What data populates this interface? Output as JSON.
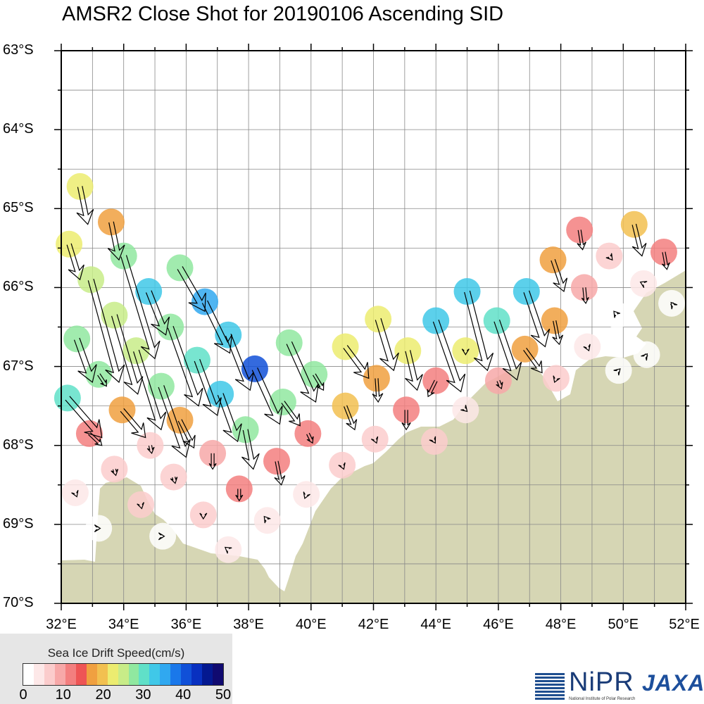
{
  "title": "AMSR2 Close Shot for 20190106 Ascending SID",
  "map": {
    "lat_labels": [
      "63°S",
      "64°S",
      "65°S",
      "66°S",
      "67°S",
      "68°S",
      "69°S",
      "70°S"
    ],
    "lon_labels": [
      "32°E",
      "34°E",
      "36°E",
      "38°E",
      "40°E",
      "42°E",
      "44°E",
      "46°E",
      "48°E",
      "50°E",
      "52°E"
    ],
    "lon_range": [
      32,
      52
    ],
    "lat_range": [
      -63,
      -70
    ],
    "land_color": "#d6d6b4",
    "grid_color": "#888888"
  },
  "legend": {
    "title": "Sea Ice Drift Speed(cm/s)",
    "ticks": [
      "0",
      "10",
      "20",
      "30",
      "40",
      "50"
    ],
    "colors": [
      "#ffffff",
      "#fde8e8",
      "#fbcccc",
      "#f7a8a8",
      "#f37f7f",
      "#ee5555",
      "#f0a040",
      "#f2c050",
      "#ecec70",
      "#c8ec88",
      "#90e8a0",
      "#60e0c8",
      "#40c8e8",
      "#30a8f0",
      "#1a78ea",
      "#1050d8",
      "#0830c0",
      "#041890",
      "#100a70"
    ],
    "speed_range": [
      0,
      50
    ]
  },
  "logos": {
    "nipr_name": "NiPR",
    "nipr_full": "National Institute of Polar Research",
    "jaxa_name": "JAXA"
  },
  "drift_vectors": [
    {
      "lon": 32.6,
      "lat": -64.72,
      "speed": 22,
      "dlon": 0.25,
      "dlat": -0.48
    },
    {
      "lon": 33.6,
      "lat": -65.17,
      "speed": 17,
      "dlon": 0.25,
      "dlat": -0.48
    },
    {
      "lon": 32.25,
      "lat": -65.45,
      "speed": 22,
      "dlon": 0.35,
      "dlat": -0.45
    },
    {
      "lon": 34.0,
      "lat": -65.6,
      "speed": 27,
      "dlon": 1.0,
      "dlat": -1.3
    },
    {
      "lon": 32.95,
      "lat": -65.9,
      "speed": 26,
      "dlon": 0.9,
      "dlat": -1.3
    },
    {
      "lon": 34.8,
      "lat": -66.05,
      "speed": 32,
      "dlon": 0.55,
      "dlat": -0.55
    },
    {
      "lon": 35.8,
      "lat": -65.75,
      "speed": 28,
      "dlon": 0.8,
      "dlat": -0.55
    },
    {
      "lon": 36.6,
      "lat": -66.18,
      "speed": 36,
      "dlon": 0.8,
      "dlat": -0.65
    },
    {
      "lon": 33.7,
      "lat": -66.35,
      "speed": 25,
      "dlon": 0.75,
      "dlat": -1.0
    },
    {
      "lon": 35.5,
      "lat": -66.5,
      "speed": 28,
      "dlon": 0.9,
      "dlat": -1.0
    },
    {
      "lon": 37.35,
      "lat": -66.6,
      "speed": 33,
      "dlon": 0.7,
      "dlat": -0.7
    },
    {
      "lon": 32.5,
      "lat": -66.65,
      "speed": 27,
      "dlon": 0.5,
      "dlat": -0.55
    },
    {
      "lon": 34.4,
      "lat": -66.8,
      "speed": 26,
      "dlon": 0.8,
      "dlat": -1.0
    },
    {
      "lon": 36.35,
      "lat": -66.92,
      "speed": 31,
      "dlon": 0.65,
      "dlat": -0.7
    },
    {
      "lon": 38.2,
      "lat": -67.03,
      "speed": 42,
      "dlon": 0.8,
      "dlat": -0.7
    },
    {
      "lon": 39.3,
      "lat": -66.7,
      "speed": 28,
      "dlon": 0.85,
      "dlat": -0.75
    },
    {
      "lon": 33.2,
      "lat": -67.1,
      "speed": 28,
      "dlon": 0.25,
      "dlat": -0.15
    },
    {
      "lon": 35.2,
      "lat": -67.25,
      "speed": 28,
      "dlon": 0.8,
      "dlat": -0.9
    },
    {
      "lon": 37.1,
      "lat": -67.35,
      "speed": 32,
      "dlon": 0.55,
      "dlat": -0.6
    },
    {
      "lon": 32.2,
      "lat": -67.4,
      "speed": 30,
      "dlon": 1.1,
      "dlat": -0.5
    },
    {
      "lon": 40.1,
      "lat": -67.1,
      "speed": 27,
      "dlon": 0.3,
      "dlat": -0.2
    },
    {
      "lon": 39.1,
      "lat": -67.45,
      "speed": 28,
      "dlon": 0.55,
      "dlat": -0.3
    },
    {
      "lon": 41.1,
      "lat": -66.75,
      "speed": 22,
      "dlon": 0.75,
      "dlat": -0.4
    },
    {
      "lon": 42.15,
      "lat": -66.4,
      "speed": 22,
      "dlon": 0.5,
      "dlat": -0.65
    },
    {
      "lon": 43.1,
      "lat": -66.8,
      "speed": 22,
      "dlon": 0.3,
      "dlat": -0.5
    },
    {
      "lon": 44.0,
      "lat": -66.42,
      "speed": 32,
      "dlon": 0.8,
      "dlat": -0.9
    },
    {
      "lon": 45.0,
      "lat": -66.05,
      "speed": 32,
      "dlon": 0.65,
      "dlat": -1.0
    },
    {
      "lon": 45.95,
      "lat": -66.42,
      "speed": 29,
      "dlon": 0.65,
      "dlat": -0.75
    },
    {
      "lon": 46.9,
      "lat": -66.05,
      "speed": 34,
      "dlon": 0.6,
      "dlat": -0.7
    },
    {
      "lon": 44.95,
      "lat": -66.8,
      "speed": 23,
      "dlon": 0.0,
      "dlat": -0.05
    },
    {
      "lon": 46.85,
      "lat": -66.78,
      "speed": 16,
      "dlon": 0.55,
      "dlat": -0.3
    },
    {
      "lon": 47.8,
      "lat": -66.42,
      "speed": 16,
      "dlon": 0.15,
      "dlat": -0.3
    },
    {
      "lon": 47.75,
      "lat": -65.65,
      "speed": 16,
      "dlon": 0.35,
      "dlat": -0.4
    },
    {
      "lon": 48.6,
      "lat": -65.27,
      "speed": 11,
      "dlon": 0.1,
      "dlat": -0.25
    },
    {
      "lon": 49.55,
      "lat": -65.6,
      "speed": 6,
      "dlon": 0.1,
      "dlat": -0.05
    },
    {
      "lon": 50.35,
      "lat": -65.2,
      "speed": 21,
      "dlon": 0.25,
      "dlat": -0.4
    },
    {
      "lon": 51.3,
      "lat": -65.55,
      "speed": 11,
      "dlon": 0.1,
      "dlat": -0.22
    },
    {
      "lon": 48.75,
      "lat": -66.0,
      "speed": 8,
      "dlon": 0.05,
      "dlat": -0.2
    },
    {
      "lon": 50.65,
      "lat": -65.95,
      "speed": 3,
      "dlon": -0.1,
      "dlat": 0.02
    },
    {
      "lon": 49.8,
      "lat": -66.35,
      "speed": 2,
      "dlon": -0.1,
      "dlat": 0.05
    },
    {
      "lon": 48.85,
      "lat": -66.75,
      "speed": 3,
      "dlon": 0.05,
      "dlat": -0.05
    },
    {
      "lon": 49.85,
      "lat": -67.05,
      "speed": 2,
      "dlon": 0.05,
      "dlat": 0.02
    },
    {
      "lon": 50.75,
      "lat": -66.85,
      "speed": 1,
      "dlon": 0.02,
      "dlat": 0.01
    },
    {
      "lon": 51.55,
      "lat": -66.2,
      "speed": 1,
      "dlon": -0.02,
      "dlat": 0.01
    },
    {
      "lon": 42.1,
      "lat": -67.15,
      "speed": 17,
      "dlon": 0.05,
      "dlat": -0.3
    },
    {
      "lon": 41.1,
      "lat": -67.5,
      "speed": 20,
      "dlon": 0.3,
      "dlat": -0.3
    },
    {
      "lon": 43.05,
      "lat": -67.55,
      "speed": 12,
      "dlon": 0.0,
      "dlat": -0.25
    },
    {
      "lon": 44.0,
      "lat": -67.18,
      "speed": 12,
      "dlon": -0.25,
      "dlat": -0.2
    },
    {
      "lon": 44.95,
      "lat": -67.55,
      "speed": 5,
      "dlon": 0.05,
      "dlat": -0.02
    },
    {
      "lon": 46.0,
      "lat": -67.18,
      "speed": 9,
      "dlon": 0.1,
      "dlat": -0.1
    },
    {
      "lon": 47.85,
      "lat": -67.15,
      "speed": 6,
      "dlon": -0.05,
      "dlat": -0.05
    },
    {
      "lon": 39.9,
      "lat": -67.85,
      "speed": 12,
      "dlon": 0.15,
      "dlat": -0.12
    },
    {
      "lon": 38.9,
      "lat": -68.2,
      "speed": 13,
      "dlon": 0.15,
      "dlat": -0.3
    },
    {
      "lon": 37.9,
      "lat": -67.8,
      "speed": 27,
      "dlon": 0.25,
      "dlat": -0.5
    },
    {
      "lon": 33.95,
      "lat": -67.55,
      "speed": 18,
      "dlon": 0.75,
      "dlat": -0.35
    },
    {
      "lon": 35.8,
      "lat": -67.68,
      "speed": 17,
      "dlon": 0.45,
      "dlat": -0.35
    },
    {
      "lon": 32.9,
      "lat": -67.85,
      "speed": 11,
      "dlon": 0.4,
      "dlat": -0.15
    },
    {
      "lon": 34.85,
      "lat": -68.0,
      "speed": 7,
      "dlon": 0.05,
      "dlat": -0.1
    },
    {
      "lon": 36.85,
      "lat": -68.1,
      "speed": 10,
      "dlon": 0.0,
      "dlat": -0.2
    },
    {
      "lon": 33.7,
      "lat": -68.3,
      "speed": 7,
      "dlon": 0.05,
      "dlat": -0.08
    },
    {
      "lon": 35.6,
      "lat": -68.4,
      "speed": 7,
      "dlon": 0.05,
      "dlat": -0.08
    },
    {
      "lon": 32.45,
      "lat": -68.6,
      "speed": 5,
      "dlon": 0.05,
      "dlat": -0.05
    },
    {
      "lon": 34.55,
      "lat": -68.75,
      "speed": 6,
      "dlon": 0.03,
      "dlat": -0.05
    },
    {
      "lon": 37.7,
      "lat": -68.55,
      "speed": 11,
      "dlon": 0.0,
      "dlat": -0.15
    },
    {
      "lon": 36.55,
      "lat": -68.88,
      "speed": 7,
      "dlon": 0.0,
      "dlat": -0.05
    },
    {
      "lon": 38.6,
      "lat": -68.95,
      "speed": 3,
      "dlon": -0.1,
      "dlat": 0.05
    },
    {
      "lon": 39.85,
      "lat": -68.62,
      "speed": 4,
      "dlon": -0.05,
      "dlat": -0.05
    },
    {
      "lon": 41.0,
      "lat": -68.25,
      "speed": 7,
      "dlon": 0.05,
      "dlat": -0.05
    },
    {
      "lon": 42.05,
      "lat": -67.92,
      "speed": 7,
      "dlon": 0.05,
      "dlat": -0.05
    },
    {
      "lon": 43.95,
      "lat": -67.95,
      "speed": 6,
      "dlon": 0.03,
      "dlat": -0.02
    },
    {
      "lon": 37.35,
      "lat": -69.32,
      "speed": 5,
      "dlon": -0.1,
      "dlat": 0.03
    },
    {
      "lon": 35.25,
      "lat": -69.15,
      "speed": 2,
      "dlon": 0.05,
      "dlat": 0.0
    },
    {
      "lon": 33.2,
      "lat": -69.05,
      "speed": 2,
      "dlon": 0.05,
      "dlat": 0.0
    }
  ]
}
